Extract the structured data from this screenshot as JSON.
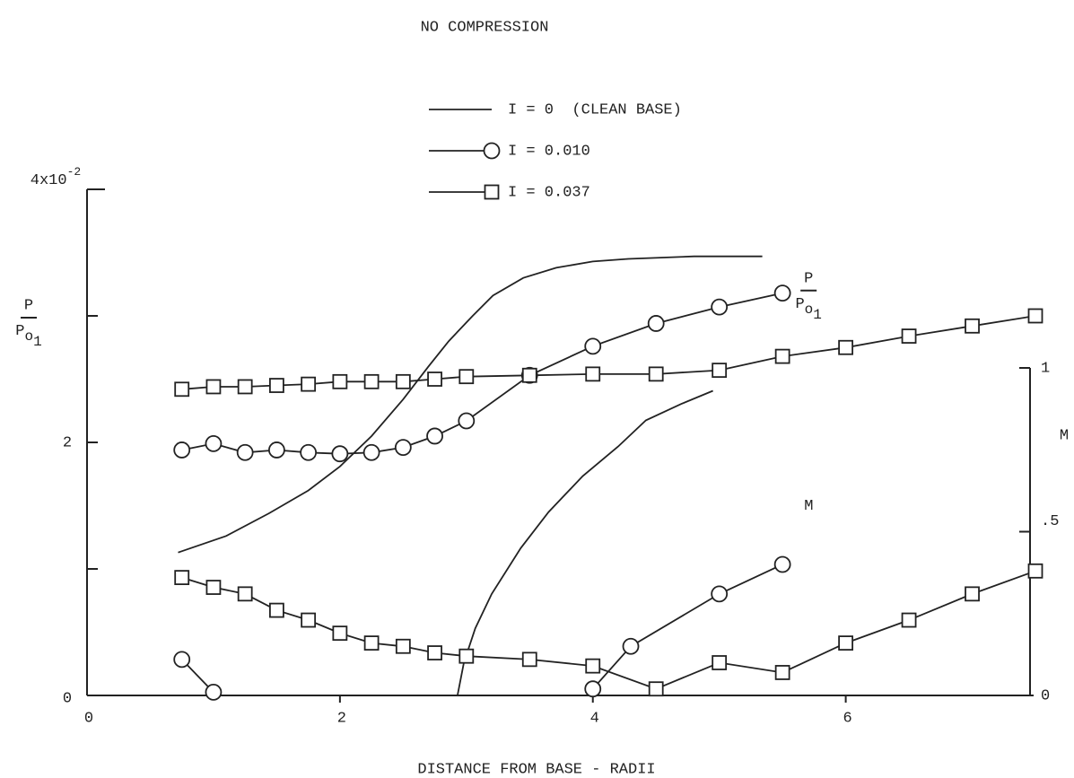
{
  "chart_data": {
    "type": "line",
    "title": "NO COMPRESSION",
    "xlabel": "DISTANCE FROM BASE - RADII",
    "ylabel": {
      "numerator": "P",
      "denominator": "P",
      "subscript": "o",
      "subsubscript": "1"
    },
    "y2label": "M",
    "annotations": [
      {
        "numerator": "P",
        "denominator": "P",
        "subscript": "o",
        "subsubscript": "1",
        "x": 5.55,
        "y": 3.2
      },
      {
        "text": "M",
        "x": 5.6,
        "y2": 0.58
      }
    ],
    "xlim": [
      0,
      7.5
    ],
    "xticks": [
      0,
      2,
      4,
      6
    ],
    "ylim": [
      0,
      4
    ],
    "yticks": [
      0,
      2,
      {
        "value": 4,
        "label": "4x10",
        "exponent": "-2"
      }
    ],
    "yminor_ticks": [
      1,
      3
    ],
    "y2lim": [
      0,
      1
    ],
    "y2ticks": [
      0,
      {
        "value": 0.5,
        "label": ".5"
      },
      1
    ],
    "series": [
      {
        "name": "I = 0  (CLEAN BASE)",
        "marker": "none",
        "color": "#222",
        "x": [
          0.72,
          1.1,
          1.44,
          1.75,
          2.0,
          2.25,
          2.5,
          2.7,
          2.86,
          3.05,
          3.21,
          3.45,
          3.71,
          4.0,
          4.28,
          4.8,
          5.34
        ],
        "values": [
          1.13,
          1.26,
          1.44,
          1.62,
          1.81,
          2.05,
          2.34,
          2.6,
          2.8,
          3.0,
          3.16,
          3.3,
          3.38,
          3.43,
          3.45,
          3.47,
          3.47
        ],
        "mach": {
          "axis": "y2",
          "x": [
            2.93,
            2.98,
            3.07,
            3.2,
            3.43,
            3.65,
            3.92,
            4.2,
            4.42,
            4.7,
            4.95
          ],
          "values": [
            0,
            0.1,
            0.205,
            0.31,
            0.45,
            0.56,
            0.67,
            0.76,
            0.84,
            0.89,
            0.93
          ]
        }
      },
      {
        "name": "I = 0.010",
        "marker": "circle",
        "color": "#222",
        "x": [
          0.75,
          1,
          1.25,
          1.5,
          1.75,
          2,
          2.25,
          2.5,
          2.75,
          3,
          3.5,
          4,
          4.5,
          5,
          5.5
        ],
        "values": [
          1.94,
          1.99,
          1.92,
          1.94,
          1.92,
          1.91,
          1.92,
          1.96,
          2.05,
          2.17,
          2.53,
          2.76,
          2.94,
          3.07,
          3.18
        ],
        "mach": {
          "axis": "y2",
          "x": [
            0.75,
            1,
            null,
            4,
            4.3,
            5,
            5.5
          ],
          "values": [
            0.11,
            0.01,
            null,
            0.02,
            0.15,
            0.31,
            0.4
          ]
        }
      },
      {
        "name": "I = 0.037",
        "marker": "square",
        "color": "#222",
        "x": [
          0.75,
          1,
          1.25,
          1.5,
          1.75,
          2,
          2.25,
          2.5,
          2.75,
          3,
          3.5,
          4,
          4.5,
          5,
          5.5,
          6,
          6.5,
          7,
          7.5
        ],
        "values": [
          2.42,
          2.44,
          2.44,
          2.45,
          2.46,
          2.48,
          2.48,
          2.48,
          2.5,
          2.52,
          2.53,
          2.54,
          2.54,
          2.57,
          2.68,
          2.75,
          2.84,
          2.92,
          3.0
        ],
        "mach": {
          "axis": "y2",
          "x": [
            0.75,
            1,
            1.25,
            1.5,
            1.75,
            2,
            2.25,
            2.5,
            2.75,
            3,
            3.5,
            4,
            4.5,
            5,
            5.5,
            6,
            6.5,
            7,
            7.5
          ],
          "values": [
            0.36,
            0.33,
            0.31,
            0.26,
            0.23,
            0.19,
            0.16,
            0.15,
            0.13,
            0.12,
            0.11,
            0.09,
            0.02,
            0.1,
            0.07,
            0.16,
            0.23,
            0.31,
            0.38
          ]
        }
      }
    ]
  }
}
